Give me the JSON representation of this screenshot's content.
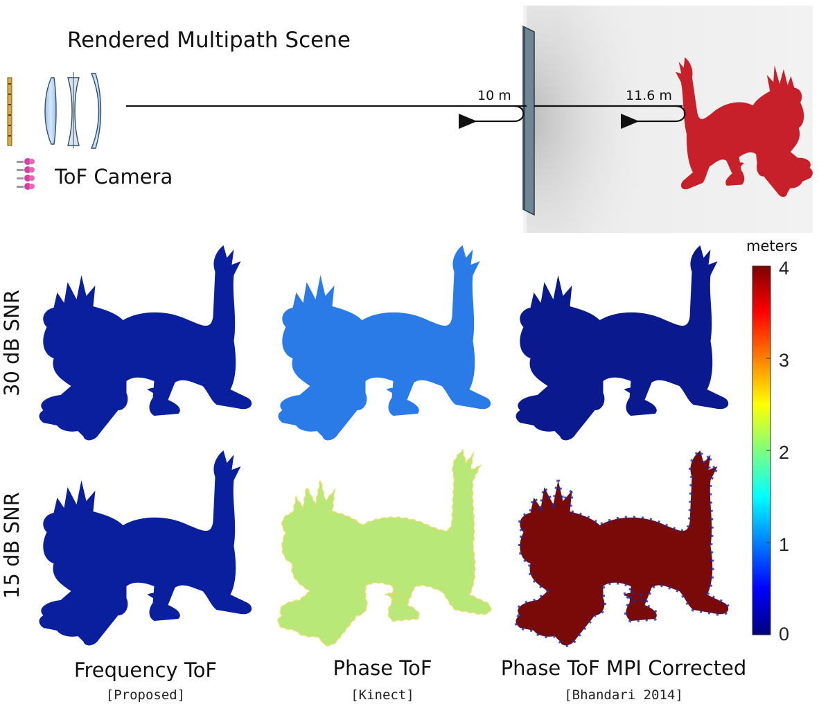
{
  "scene": {
    "title": "Rendered Multipath Scene",
    "camera_label": "ToF Camera",
    "wall_distance": "10 m",
    "object_distance": "11.6 m"
  },
  "rows": [
    {
      "label": "30 dB SNR"
    },
    {
      "label": "15 dB SNR"
    }
  ],
  "columns": [
    {
      "title": "Frequency ToF",
      "subtitle": "[Proposed]"
    },
    {
      "title": "Phase ToF",
      "subtitle": "[Kinect]"
    },
    {
      "title": "Phase ToF MPI Corrected",
      "subtitle": "[Bhandari 2014]"
    }
  ],
  "colorbar": {
    "title": "meters",
    "ticks": [
      "4",
      "3",
      "2",
      "1",
      "0"
    ],
    "range": [
      0,
      4
    ]
  },
  "colors": {
    "frequency_30": "#0a1f9e",
    "phase_30": "#2a7ae8",
    "mpi_30": "#0a1a8e",
    "frequency_15": "#0a1f9e",
    "phase_15": "#b8e878",
    "mpi_15": "#7a0a08",
    "dragon_render": "#c8202a"
  }
}
